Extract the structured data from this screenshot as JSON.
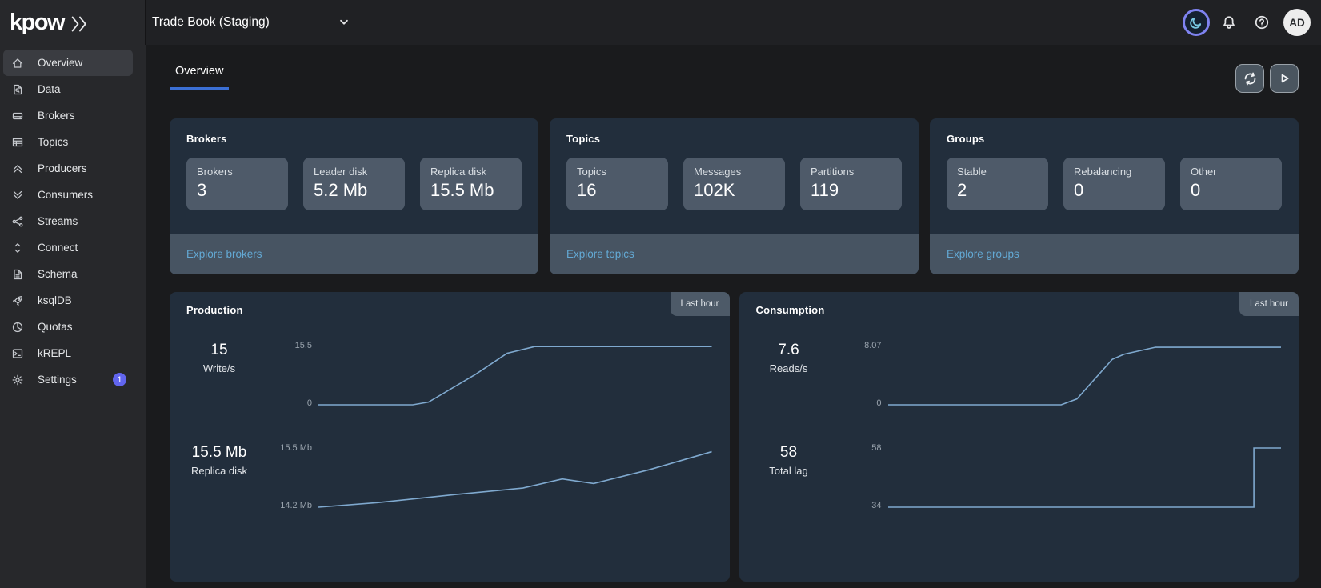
{
  "brand": {
    "logo_text": "kpow",
    "logo_icon": "double-chevron-right-icon"
  },
  "topbar": {
    "environment": "Trade Book (Staging)",
    "environment_dropdown_icon": "chevron-down-icon",
    "actions": {
      "theme_icon": "moon-icon",
      "notifications_icon": "bell-icon",
      "help_icon": "help-icon",
      "avatar_initials": "AD"
    }
  },
  "sidebar": {
    "items": [
      {
        "label": "Overview",
        "icon": "home-icon",
        "active": true
      },
      {
        "label": "Data",
        "icon": "data-icon",
        "active": false
      },
      {
        "label": "Brokers",
        "icon": "brokers-icon",
        "active": false
      },
      {
        "label": "Topics",
        "icon": "topics-icon",
        "active": false
      },
      {
        "label": "Producers",
        "icon": "producers-icon",
        "active": false
      },
      {
        "label": "Consumers",
        "icon": "consumers-icon",
        "active": false
      },
      {
        "label": "Streams",
        "icon": "streams-icon",
        "active": false
      },
      {
        "label": "Connect",
        "icon": "connect-icon",
        "active": false
      },
      {
        "label": "Schema",
        "icon": "schema-icon",
        "active": false
      },
      {
        "label": "ksqlDB",
        "icon": "ksqldb-icon",
        "active": false
      },
      {
        "label": "Quotas",
        "icon": "quotas-icon",
        "active": false
      },
      {
        "label": "kREPL",
        "icon": "krepl-icon",
        "active": false
      },
      {
        "label": "Settings",
        "icon": "settings-icon",
        "active": false,
        "badge": "1"
      }
    ]
  },
  "page": {
    "tab": "Overview"
  },
  "toolbar": {
    "refresh_icon": "refresh-icon",
    "play_icon": "play-icon"
  },
  "summary_cards": [
    {
      "title": "Brokers",
      "stats": [
        {
          "label": "Brokers",
          "value": "3"
        },
        {
          "label": "Leader disk",
          "value": "5.2 Mb"
        },
        {
          "label": "Replica disk",
          "value": "15.5 Mb"
        }
      ],
      "link": "Explore brokers"
    },
    {
      "title": "Topics",
      "stats": [
        {
          "label": "Topics",
          "value": "16"
        },
        {
          "label": "Messages",
          "value": "102K"
        },
        {
          "label": "Partitions",
          "value": "119"
        }
      ],
      "link": "Explore topics"
    },
    {
      "title": "Groups",
      "stats": [
        {
          "label": "Stable",
          "value": "2"
        },
        {
          "label": "Rebalancing",
          "value": "0"
        },
        {
          "label": "Other",
          "value": "0"
        }
      ],
      "link": "Explore groups"
    }
  ],
  "chart_data": [
    {
      "type": "line",
      "panel": "Production",
      "badge": "Last hour",
      "x_range_note": "percent of last hour, 0-100",
      "rows": [
        {
          "value": "15",
          "label": "Write/s",
          "ymax_label": "15.5",
          "ymin_label": "0",
          "ymin": 0,
          "ymax": 15.5,
          "points": [
            [
              0,
              0
            ],
            [
              24,
              0
            ],
            [
              28,
              0.7
            ],
            [
              40,
              8
            ],
            [
              48,
              13.5
            ],
            [
              55,
              15.25
            ],
            [
              100,
              15.25
            ]
          ]
        },
        {
          "value": "15.5 Mb",
          "label": "Replica disk",
          "ymax_label": "15.5 Mb",
          "ymin_label": "14.2 Mb",
          "ymin": 14.2,
          "ymax": 15.5,
          "points": [
            [
              0,
              14.2
            ],
            [
              15,
              14.3
            ],
            [
              35,
              14.48
            ],
            [
              52,
              14.62
            ],
            [
              62,
              14.82
            ],
            [
              70,
              14.72
            ],
            [
              84,
              15.02
            ],
            [
              100,
              15.42
            ]
          ]
        }
      ]
    },
    {
      "type": "line",
      "panel": "Consumption",
      "badge": "Last hour",
      "x_range_note": "percent of last hour, 0-100",
      "rows": [
        {
          "value": "7.6",
          "label": "Reads/s",
          "ymax_label": "8.07",
          "ymin_label": "0",
          "ymin": 0,
          "ymax": 8.07,
          "points": [
            [
              0,
              0
            ],
            [
              44,
              0
            ],
            [
              48,
              0.8
            ],
            [
              57,
              6.2
            ],
            [
              60,
              6.9
            ],
            [
              68,
              7.85
            ],
            [
              100,
              7.85
            ]
          ]
        },
        {
          "value": "58",
          "label": "Total lag",
          "ymax_label": "58",
          "ymin_label": "34",
          "ymin": 34,
          "ymax": 58,
          "points": [
            [
              0,
              34
            ],
            [
              93,
              34
            ],
            [
              93,
              58
            ],
            [
              100,
              58
            ]
          ]
        }
      ]
    }
  ],
  "colors": {
    "accent": "#3b6fd4",
    "link": "#63a9d4",
    "chart_line": "#7fa9cf",
    "badge": "#6165ee",
    "card_bg": "#222e3c",
    "tile_bg": "#4e5a69",
    "footer_bg": "#475462"
  }
}
